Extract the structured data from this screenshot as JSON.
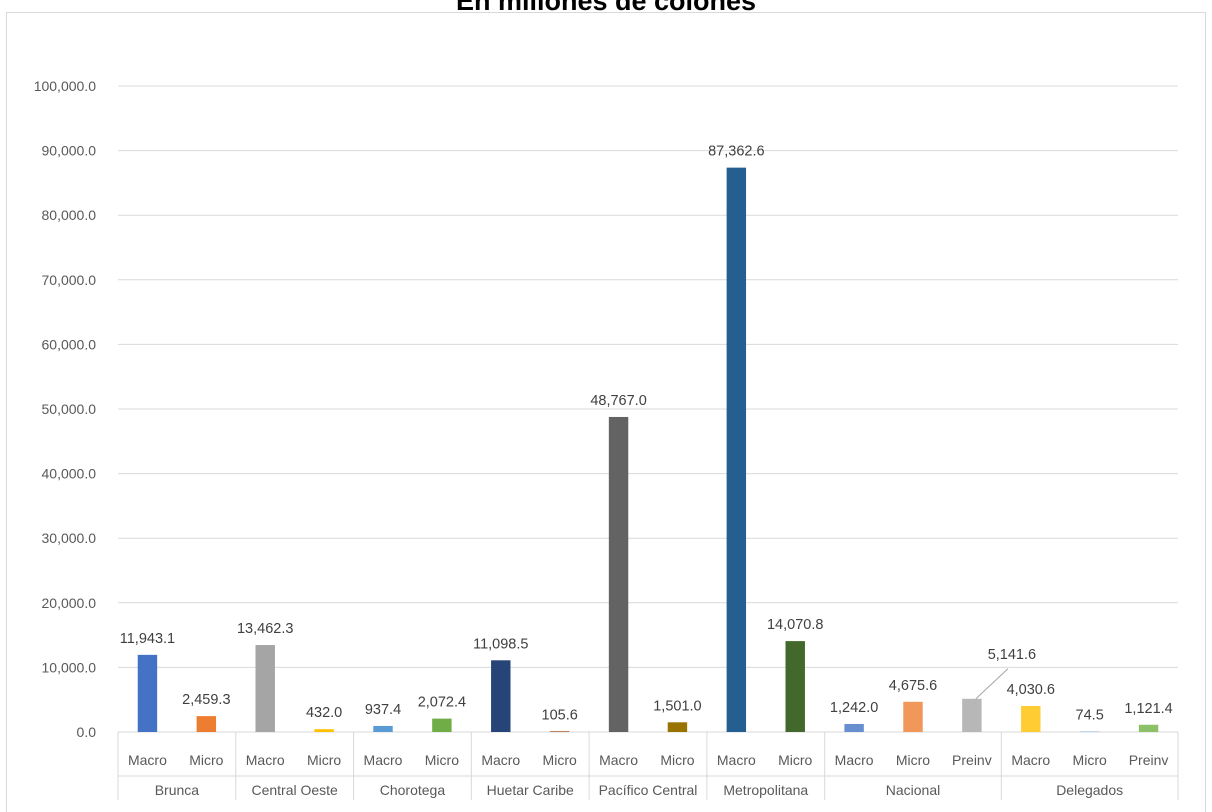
{
  "chart_data": {
    "type": "bar",
    "title": "En millones de colones",
    "ylim": [
      0,
      100000
    ],
    "yticks": [
      0,
      10000,
      20000,
      30000,
      40000,
      50000,
      60000,
      70000,
      80000,
      90000,
      100000
    ],
    "ytick_labels": [
      "0.0",
      "10,000.0",
      "20,000.0",
      "30,000.0",
      "40,000.0",
      "50,000.0",
      "60,000.0",
      "70,000.0",
      "80,000.0",
      "90,000.0",
      "100,000.0"
    ],
    "grid": true,
    "legend": "none",
    "groups": [
      {
        "name": "Brunca",
        "bars": [
          {
            "label": "Macro",
            "value": 11943.1,
            "value_label": "11,943.1",
            "color": "#4472c4"
          },
          {
            "label": "Micro",
            "value": 2459.3,
            "value_label": "2,459.3",
            "color": "#ed7d31"
          }
        ]
      },
      {
        "name": "Central Oeste",
        "bars": [
          {
            "label": "Macro",
            "value": 13462.3,
            "value_label": "13,462.3",
            "color": "#a5a5a5"
          },
          {
            "label": "Micro",
            "value": 432.0,
            "value_label": "432.0",
            "color": "#ffc000"
          }
        ]
      },
      {
        "name": "Chorotega",
        "bars": [
          {
            "label": "Macro",
            "value": 937.4,
            "value_label": "937.4",
            "color": "#5b9bd5"
          },
          {
            "label": "Micro",
            "value": 2072.4,
            "value_label": "2,072.4",
            "color": "#70ad47"
          }
        ]
      },
      {
        "name": "Huetar Caribe",
        "bars": [
          {
            "label": "Macro",
            "value": 11098.5,
            "value_label": "11,098.5",
            "color": "#264478"
          },
          {
            "label": "Micro",
            "value": 105.6,
            "value_label": "105.6",
            "color": "#9e480e"
          }
        ]
      },
      {
        "name": "Pacífico Central",
        "bars": [
          {
            "label": "Macro",
            "value": 48767.0,
            "value_label": "48,767.0",
            "color": "#636363"
          },
          {
            "label": "Micro",
            "value": 1501.0,
            "value_label": "1,501.0",
            "color": "#997300"
          }
        ]
      },
      {
        "name": "Metropolitana",
        "bars": [
          {
            "label": "Macro",
            "value": 87362.6,
            "value_label": "87,362.6",
            "color": "#255e91"
          },
          {
            "label": "Micro",
            "value": 14070.8,
            "value_label": "14,070.8",
            "color": "#43682b"
          }
        ]
      },
      {
        "name": "Nacional",
        "bars": [
          {
            "label": "Macro",
            "value": 1242.0,
            "value_label": "1,242.0",
            "color": "#698ed0"
          },
          {
            "label": "Micro",
            "value": 4675.6,
            "value_label": "4,675.6",
            "color": "#f1975a"
          },
          {
            "label": "Preinv",
            "value": 5141.6,
            "value_label": "5,141.6",
            "color": "#b7b7b7"
          }
        ]
      },
      {
        "name": "Delegados",
        "bars": [
          {
            "label": "Macro",
            "value": 4030.6,
            "value_label": "4,030.6",
            "color": "#ffcd33"
          },
          {
            "label": "Micro",
            "value": 74.5,
            "value_label": "74.5",
            "color": "#7cafdd"
          },
          {
            "label": "Preinv",
            "value": 1121.4,
            "value_label": "1,121.4",
            "color": "#8cc168"
          }
        ]
      }
    ]
  }
}
